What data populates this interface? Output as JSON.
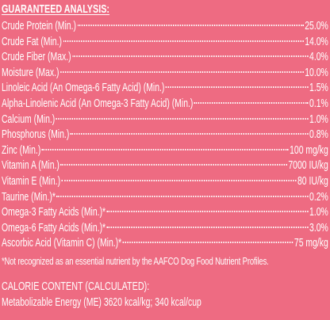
{
  "analysis": {
    "title": "GUARANTEED ANALYSIS:",
    "rows": [
      [
        "Crude Protein (Min.)",
        "25.0%"
      ],
      [
        "Crude Fat (Min.)",
        "14.0%"
      ],
      [
        "Crude Fiber (Max.)",
        "4.0%"
      ],
      [
        "Moisture (Max.)",
        "10.0%"
      ],
      [
        "Linoleic Acid (An Omega-6 Fatty Acid) (Min.)",
        "1.5%"
      ],
      [
        "Alpha-Linolenic Acid (An Omega-3 Fatty Acid) (Min.)",
        "0.1%"
      ],
      [
        "Calcium (Min.)",
        "1.0%"
      ],
      [
        "Phosphorus (Min.)",
        "0.8%"
      ],
      [
        "Zinc (Min.)",
        "100 mg/kg"
      ],
      [
        "Vitamin A (Min.)",
        "7000 IU/kg"
      ],
      [
        "Vitamin E (Min.)",
        "80 IU/kg"
      ],
      [
        "Taurine (Min.)*",
        "0.2%"
      ],
      [
        "Omega-3 Fatty Acids (Min.)*",
        "1.0%"
      ],
      [
        "Omega-6 Fatty Acids (Min.)*",
        "3.0%"
      ],
      [
        "Ascorbic Acid (Vitamin C) (Min.)*",
        "75 mg/kg"
      ]
    ],
    "footnote": "*Not recognized as an essential nutrient by the AAFCO Dog Food Nutrient Profiles."
  },
  "calories": {
    "title": "CALORIE CONTENT (CALCULATED):",
    "text": "Metabolizable Energy (ME) 3620 kcal/kg; 340 kcal/cup"
  }
}
